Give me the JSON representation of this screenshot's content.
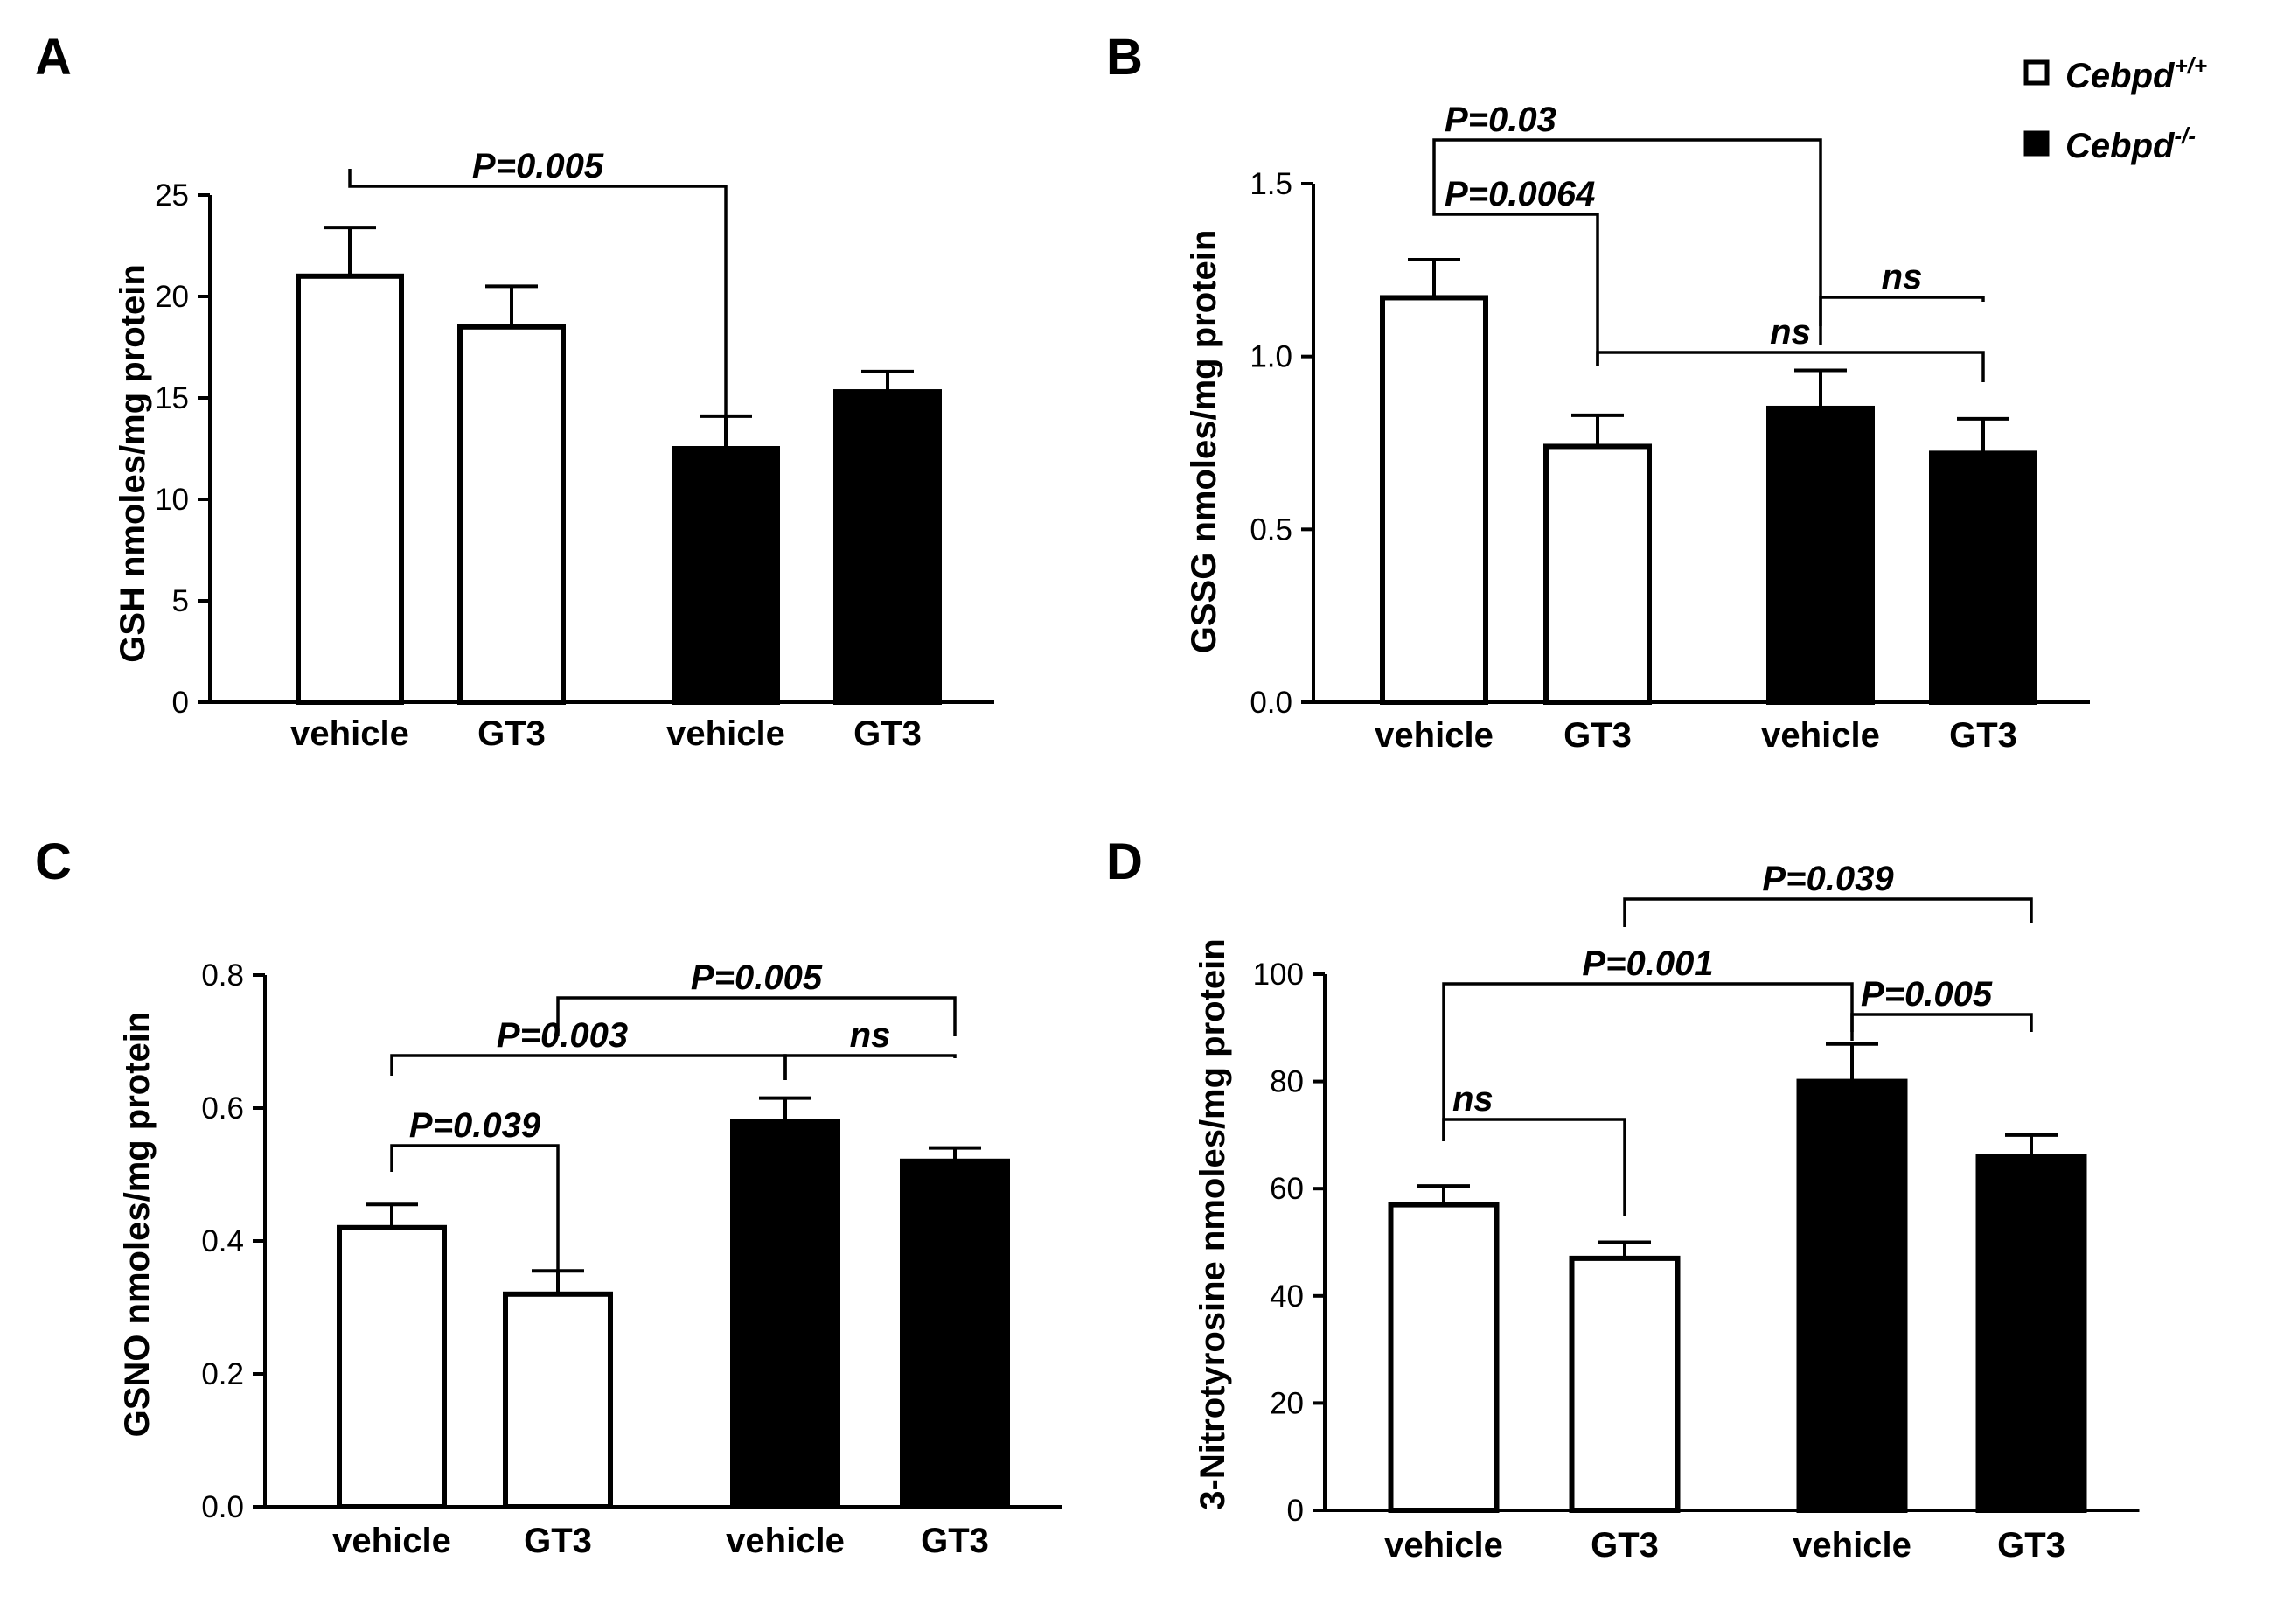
{
  "legend": {
    "wt_label": "Cebpd",
    "wt_sup": "+/+",
    "ko_label": "Cebpd",
    "ko_sup": "-/-",
    "wt_color": "#ffffff",
    "ko_color": "#000000"
  },
  "chart_data": [
    {
      "panel": "A",
      "type": "bar",
      "ylabel": "GSH nmoles/mg protein",
      "ylim": [
        0,
        25
      ],
      "yticks": [
        0,
        5,
        10,
        15,
        20,
        25
      ],
      "ytick_labels": [
        "0",
        "5",
        "10",
        "15",
        "20",
        "25"
      ],
      "categories": [
        "vehicle",
        "GT3",
        "vehicle",
        "GT3"
      ],
      "groups": [
        "Cebpd+/+",
        "Cebpd+/+",
        "Cebpd-/-",
        "Cebpd-/-"
      ],
      "values": [
        21.0,
        18.5,
        12.5,
        15.3
      ],
      "errors": [
        2.4,
        2.0,
        1.6,
        1.0
      ],
      "annotations": [
        {
          "text": "P=0.005",
          "from": 0,
          "to": 2
        }
      ]
    },
    {
      "panel": "B",
      "type": "bar",
      "ylabel": "GSSG nmoles/mg protein",
      "ylim": [
        0,
        1.5
      ],
      "yticks": [
        0,
        0.5,
        1.0,
        1.5
      ],
      "ytick_labels": [
        "0.0",
        "0.5",
        "1.0",
        "1.5"
      ],
      "categories": [
        "vehicle",
        "GT3",
        "vehicle",
        "GT3"
      ],
      "groups": [
        "Cebpd+/+",
        "Cebpd+/+",
        "Cebpd-/-",
        "Cebpd-/-"
      ],
      "values": [
        1.17,
        0.74,
        0.85,
        0.72
      ],
      "errors": [
        0.11,
        0.09,
        0.11,
        0.1
      ],
      "annotations": [
        {
          "text": "P=0.03",
          "from": 0,
          "to": 2
        },
        {
          "text": "P=0.0064",
          "from": 0,
          "to": 1
        },
        {
          "text": "ns",
          "from": 1,
          "to": 3
        },
        {
          "text": "ns",
          "from": 2,
          "to": 3
        }
      ]
    },
    {
      "panel": "C",
      "type": "bar",
      "ylabel": "GSNO nmoles/mg protein",
      "ylim": [
        0,
        0.8
      ],
      "yticks": [
        0,
        0.2,
        0.4,
        0.6,
        0.8
      ],
      "ytick_labels": [
        "0.0",
        "0.2",
        "0.4",
        "0.6",
        "0.8"
      ],
      "categories": [
        "vehicle",
        "GT3",
        "vehicle",
        "GT3"
      ],
      "groups": [
        "Cebpd+/+",
        "Cebpd+/+",
        "Cebpd-/-",
        "Cebpd-/-"
      ],
      "values": [
        0.42,
        0.32,
        0.58,
        0.52
      ],
      "errors": [
        0.035,
        0.035,
        0.035,
        0.02
      ],
      "annotations": [
        {
          "text": "P=0.005",
          "from": 1,
          "to": 3
        },
        {
          "text": "P=0.003",
          "from": 0,
          "to": 2
        },
        {
          "text": "ns",
          "from": 2,
          "to": 3
        },
        {
          "text": "P=0.039",
          "from": 0,
          "to": 1
        }
      ]
    },
    {
      "panel": "D",
      "type": "bar",
      "ylabel": "3-Nitrotyrosine nmoles/mg protein",
      "ylim": [
        0,
        100
      ],
      "yticks": [
        0,
        20,
        40,
        60,
        80,
        100
      ],
      "ytick_labels": [
        "0",
        "20",
        "40",
        "60",
        "80",
        "100"
      ],
      "categories": [
        "vehicle",
        "GT3",
        "vehicle",
        "GT3"
      ],
      "groups": [
        "Cebpd+/+",
        "Cebpd+/+",
        "Cebpd-/-",
        "Cebpd-/-"
      ],
      "values": [
        57,
        47,
        80,
        66
      ],
      "errors": [
        3.5,
        3.0,
        7.0,
        4.0
      ],
      "annotations": [
        {
          "text": "P=0.039",
          "from": 1,
          "to": 3
        },
        {
          "text": "P=0.001",
          "from": 0,
          "to": 2
        },
        {
          "text": "P=0.005",
          "from": 2,
          "to": 3
        },
        {
          "text": "ns",
          "from": 0,
          "to": 1
        }
      ]
    }
  ]
}
